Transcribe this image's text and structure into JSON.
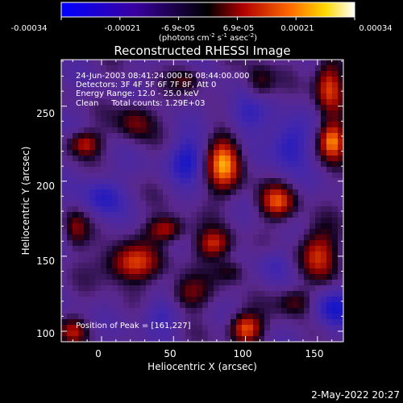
{
  "chart_data": {
    "type": "heatmap",
    "title": "Reconstructed RHESSI Image",
    "xlabel": "Heliocentric X (arcsec)",
    "ylabel": "Heliocentric Y (arcsec)",
    "xlim": [
      -28,
      168
    ],
    "ylim": [
      93,
      281
    ],
    "x_ticks": [
      0,
      50,
      100,
      150
    ],
    "y_ticks": [
      100,
      150,
      200,
      250
    ],
    "colorbar": {
      "ticks": [
        "-0.00034",
        "-0.00021",
        "-6.9e-05",
        "6.9e-05",
        "0.00021",
        "0.00034"
      ],
      "unit_main": "(photons cm",
      "unit_sup1": "-2",
      "unit_mid1": " s",
      "unit_sup2": "-1",
      "unit_mid2": " asec",
      "unit_sup3": "-2",
      "unit_end": ")"
    },
    "annotations": [
      "24-Jun-2003 08:41:24.000 to 08:44:00.000",
      "Detectors: 3F 4F 5F 6F 7F 8F, Att 0",
      "Energy Range: 12.0 - 25.0 keV",
      "Clean     Total counts: 1.29E+03"
    ],
    "peak_label": "Position of Peak = [161,227]",
    "footer_timestamp": "2-May-2022 20:27",
    "colors": {
      "background": "#000000",
      "text": "#ffffff"
    },
    "intensity_sources": [
      {
        "x": 85,
        "y": 212,
        "amp": 1.0,
        "sx": 9,
        "sy": 14
      },
      {
        "x": 160,
        "y": 227,
        "amp": 1.0,
        "sx": 7,
        "sy": 9
      },
      {
        "x": 158,
        "y": 264,
        "amp": 0.85,
        "sx": 7,
        "sy": 14
      },
      {
        "x": -12,
        "y": 225,
        "amp": 0.75,
        "sx": 8,
        "sy": 6
      },
      {
        "x": 122,
        "y": 186,
        "amp": 0.8,
        "sx": 9,
        "sy": 8
      },
      {
        "x": 45,
        "y": 168,
        "amp": 0.75,
        "sx": 9,
        "sy": 6
      },
      {
        "x": 20,
        "y": 145,
        "amp": 0.85,
        "sx": 14,
        "sy": 9
      },
      {
        "x": 78,
        "y": 158,
        "amp": 0.75,
        "sx": 9,
        "sy": 7
      },
      {
        "x": 100,
        "y": 102,
        "amp": 0.95,
        "sx": 8,
        "sy": 7
      },
      {
        "x": -20,
        "y": 100,
        "amp": 0.55,
        "sx": 7,
        "sy": 6
      },
      {
        "x": 150,
        "y": 152,
        "amp": 0.75,
        "sx": 10,
        "sy": 12
      },
      {
        "x": 24,
        "y": 240,
        "amp": 0.55,
        "sx": 9,
        "sy": 9
      },
      {
        "x": 110,
        "y": 265,
        "amp": 0.5,
        "sx": 7,
        "sy": 9
      },
      {
        "x": 60,
        "y": 268,
        "amp": 0.45,
        "sx": 8,
        "sy": 6
      },
      {
        "x": 135,
        "y": 120,
        "amp": 0.55,
        "sx": 9,
        "sy": 7
      },
      {
        "x": -18,
        "y": 168,
        "amp": 0.5,
        "sx": 6,
        "sy": 9
      },
      {
        "x": 60,
        "y": 125,
        "amp": 0.55,
        "sx": 10,
        "sy": 8
      },
      {
        "x": 90,
        "y": 140,
        "amp": 0.45,
        "sx": 8,
        "sy": 6
      },
      {
        "x": 60,
        "y": 215,
        "amp": -0.6,
        "sx": 10,
        "sy": 10
      },
      {
        "x": 130,
        "y": 225,
        "amp": -0.6,
        "sx": 10,
        "sy": 12
      },
      {
        "x": 0,
        "y": 190,
        "amp": -0.5,
        "sx": 10,
        "sy": 10
      },
      {
        "x": 160,
        "y": 115,
        "amp": -0.6,
        "sx": 10,
        "sy": 10
      },
      {
        "x": 120,
        "y": 145,
        "amp": -0.4,
        "sx": 8,
        "sy": 8
      },
      {
        "x": 100,
        "y": 245,
        "amp": -0.45,
        "sx": 12,
        "sy": 10
      },
      {
        "x": 40,
        "y": 110,
        "amp": -0.4,
        "sx": 10,
        "sy": 8
      }
    ]
  }
}
